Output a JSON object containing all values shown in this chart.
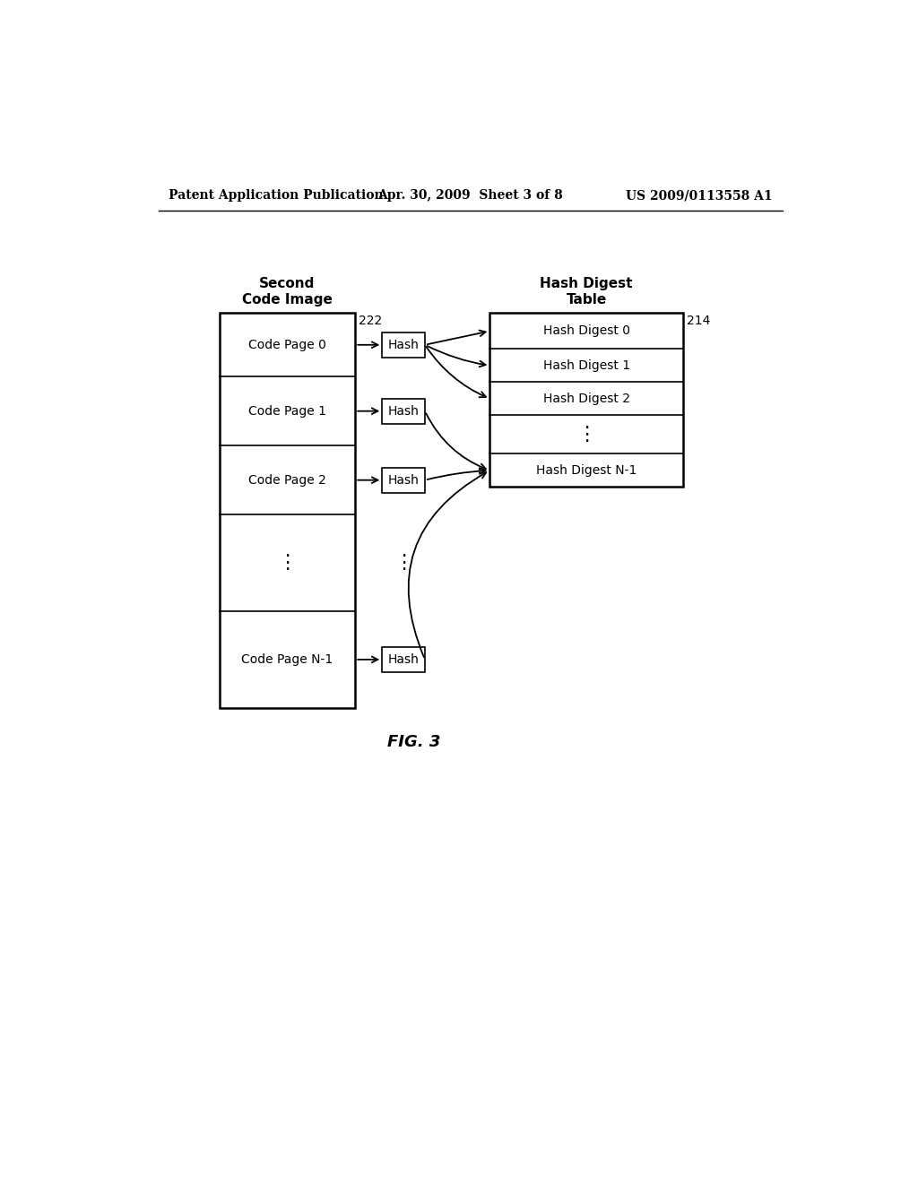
{
  "bg_color": "#ffffff",
  "header_left": "Patent Application Publication",
  "header_center": "Apr. 30, 2009  Sheet 3 of 8",
  "header_right": "US 2009/0113558 A1",
  "figure_label": "FIG. 3",
  "dots_text": "⋮",
  "code_pages": [
    "Code Page 0",
    "Code Page 1",
    "Code Page 2",
    "Code Page N-1"
  ],
  "hash_labels": [
    "Hash Digest 0",
    "Hash Digest 1",
    "Hash Digest 2",
    "Hash Digest N-1"
  ],
  "left_label": "Second\nCode Image",
  "left_num": "222",
  "right_label": "Hash Digest\nTable",
  "right_num": "214"
}
